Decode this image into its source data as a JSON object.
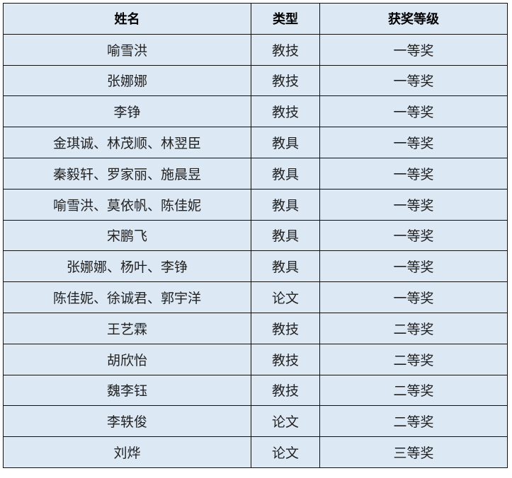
{
  "table": {
    "headers": [
      "姓名",
      "类型",
      "获奖等级"
    ],
    "rows": [
      [
        "喻雪洪",
        "教技",
        "一等奖"
      ],
      [
        "张娜娜",
        "教技",
        "一等奖"
      ],
      [
        "李铮",
        "教技",
        "一等奖"
      ],
      [
        "金琪诚、林茂顺、林翌臣",
        "教具",
        "一等奖"
      ],
      [
        "秦毅轩、罗家丽、施晨昱",
        "教具",
        "一等奖"
      ],
      [
        "喻雪洪、莫依帆、陈佳妮",
        "教具",
        "一等奖"
      ],
      [
        "宋鹏飞",
        "教具",
        "一等奖"
      ],
      [
        "张娜娜、杨叶、李铮",
        "教具",
        "一等奖"
      ],
      [
        "陈佳妮、徐诚君、郭宇洋",
        "论文",
        "一等奖"
      ],
      [
        "王艺霖",
        "教技",
        "二等奖"
      ],
      [
        "胡欣怡",
        "教技",
        "二等奖"
      ],
      [
        "魏李钰",
        "教技",
        "二等奖"
      ],
      [
        "李轶俊",
        "论文",
        "二等奖"
      ],
      [
        "刘烨",
        "论文",
        "三等奖"
      ]
    ]
  },
  "colors": {
    "cell_background": "#dde8f5",
    "border": "#111111"
  }
}
